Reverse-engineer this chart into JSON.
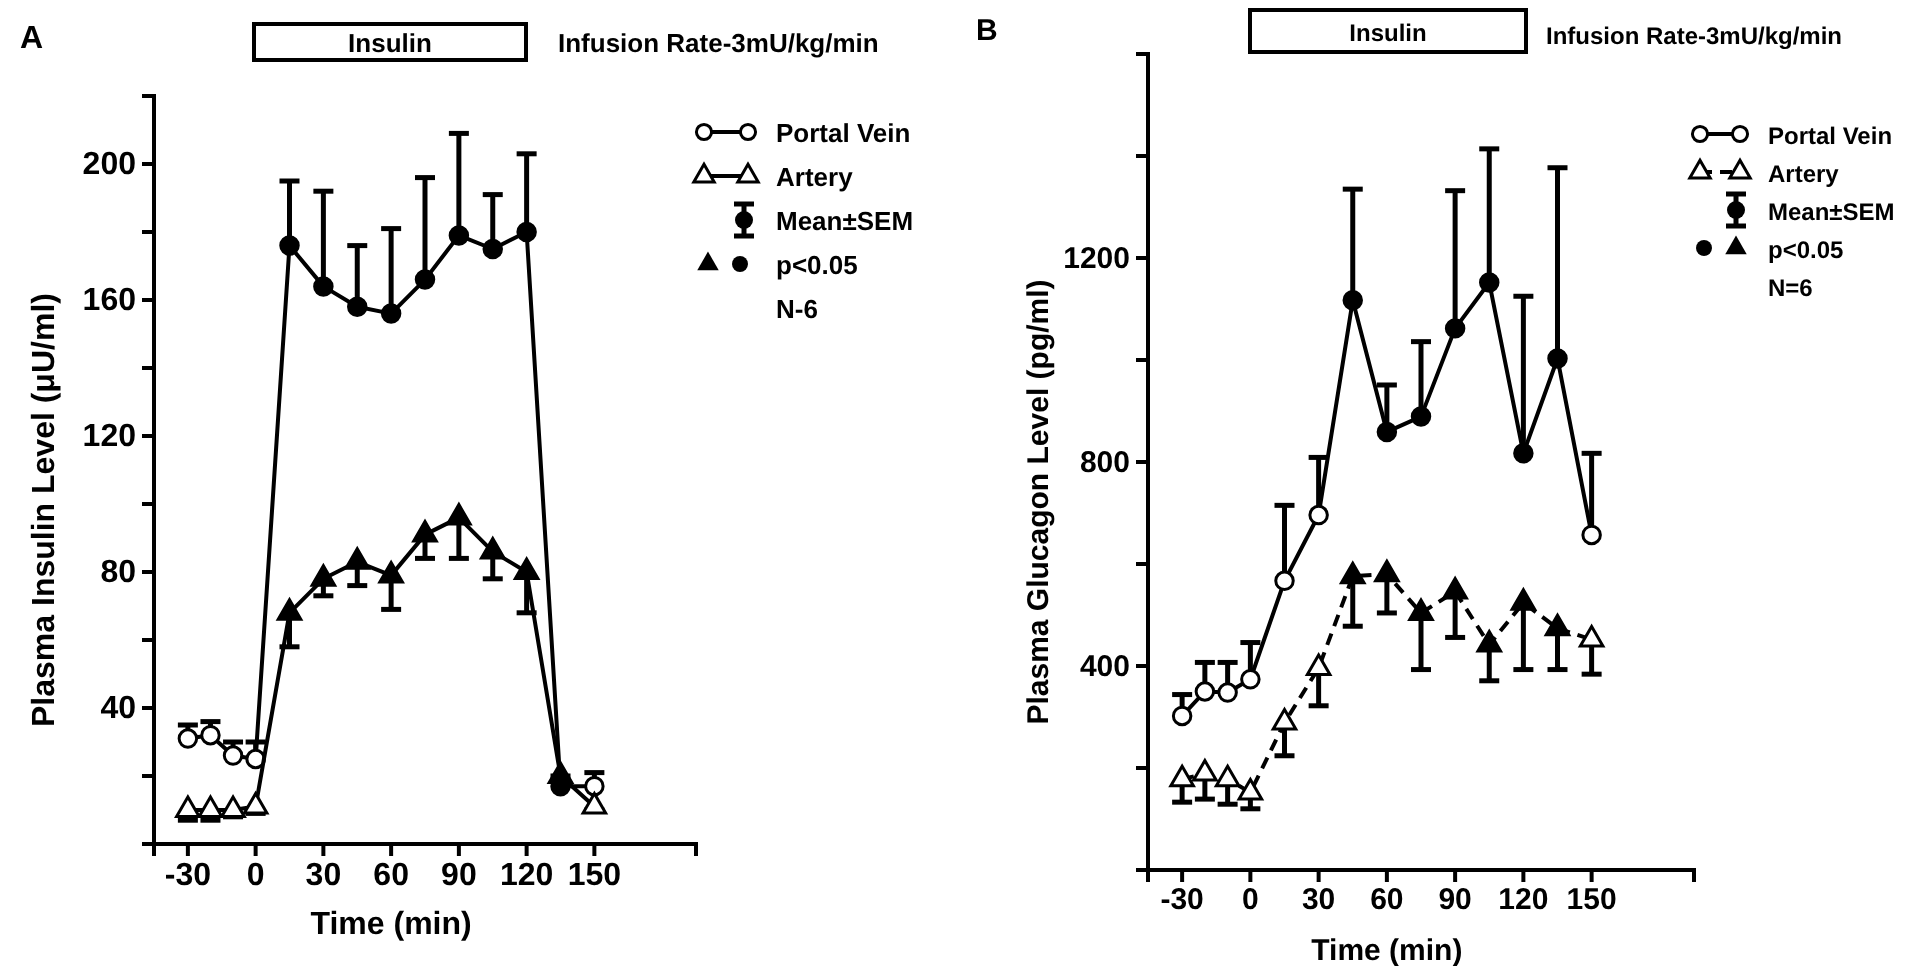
{
  "chart_data": [
    {
      "type": "line",
      "title": "A",
      "xlabel": "Time (min)",
      "ylabel": "Plasma Insulin Level (μU/ml)",
      "x": [
        -30,
        -20,
        -10,
        0,
        15,
        30,
        45,
        60,
        75,
        90,
        105,
        120,
        135,
        150
      ],
      "xlim": [
        -45,
        195
      ],
      "xticks": [
        -30,
        0,
        30,
        60,
        90,
        120,
        150
      ],
      "ylim": [
        0,
        220
      ],
      "yticks": [
        {
          "value": 20,
          "label": null
        },
        40,
        {
          "value": 60,
          "label": null
        },
        80,
        {
          "value": 100,
          "label": null
        },
        120,
        {
          "value": 140,
          "label": null
        },
        160,
        {
          "value": 180,
          "label": null
        },
        200
      ],
      "grid": false,
      "legend": "top right",
      "line_style": "solid",
      "series": [
        {
          "name": "Portal Vein",
          "color": "#000000",
          "marker": "circle",
          "values": [
            31,
            32,
            26,
            25,
            176,
            164,
            158,
            156,
            166,
            179,
            175,
            180,
            17,
            17
          ],
          "errors": [
            [
              31,
              35
            ],
            [
              32,
              36
            ],
            [
              26,
              30
            ],
            [
              25,
              30
            ],
            [
              176,
              195
            ],
            [
              164,
              192
            ],
            [
              158,
              176
            ],
            [
              156,
              181
            ],
            [
              166,
              196
            ],
            [
              179,
              209
            ],
            [
              175,
              191
            ],
            [
              180,
              203
            ],
            [
              17,
              20
            ],
            [
              17,
              21
            ]
          ],
          "colors": [
            "#ffffff",
            "#ffffff",
            "#ffffff",
            "#ffffff",
            "#000000",
            "#000000",
            "#000000",
            "#000000",
            "#000000",
            "#000000",
            "#000000",
            "#000000",
            "#000000",
            "#ffffff"
          ]
        },
        {
          "name": "Artery",
          "color": "#000000",
          "marker": "triangle",
          "values": [
            10,
            10,
            10,
            11,
            68,
            78,
            83,
            79,
            91,
            96,
            86,
            80,
            20,
            11
          ],
          "errors": [
            [
              7,
              10
            ],
            [
              7,
              10
            ],
            [
              8,
              10
            ],
            [
              9,
              11
            ],
            [
              58,
              68
            ],
            [
              73,
              78
            ],
            [
              76,
              83
            ],
            [
              69,
              79
            ],
            [
              84,
              91
            ],
            [
              84,
              96
            ],
            [
              78,
              86
            ],
            [
              68,
              80
            ],
            null,
            [
              10,
              11
            ]
          ],
          "colors": [
            "#ffffff",
            "#ffffff",
            "#ffffff",
            "#ffffff",
            "#000000",
            "#000000",
            "#000000",
            "#000000",
            "#000000",
            "#000000",
            "#000000",
            "#000000",
            "#000000",
            "#ffffff"
          ]
        }
      ],
      "annotations": [
        "Insulin",
        "Infusion Rate-3mU/kg/min",
        "Mean±SEM",
        "p<0.05",
        "N-6"
      ]
    },
    {
      "type": "line",
      "title": "B",
      "xlabel": "Time (min)",
      "ylabel": "Plasma Glucagon Level (pg/ml)",
      "x": [
        -30,
        -20,
        -10,
        0,
        15,
        30,
        45,
        60,
        75,
        90,
        105,
        120,
        135,
        150
      ],
      "xlim": [
        -45,
        195
      ],
      "xticks": [
        -30,
        0,
        30,
        60,
        90,
        120,
        150
      ],
      "ylim": [
        0,
        1600
      ],
      "yticks": [
        {
          "value": 200,
          "label": null
        },
        400,
        {
          "value": 600,
          "label": null
        },
        800,
        {
          "value": 1000,
          "label": null
        },
        1200,
        {
          "value": 1400,
          "label": null
        }
      ],
      "grid": false,
      "legend": "top right",
      "series": [
        {
          "name": "Portal Vein",
          "color": "#000000",
          "marker": "circle",
          "line_style": "solid",
          "values": [
            302,
            350,
            348,
            374,
            567,
            696,
            1117,
            859,
            889,
            1062,
            1152,
            817,
            1003,
            657
          ],
          "errors": [
            [
              302,
              344
            ],
            [
              350,
              407
            ],
            [
              348,
              407
            ],
            [
              374,
              446
            ],
            [
              567,
              715
            ],
            [
              696,
              809
            ],
            [
              1117,
              1335
            ],
            [
              859,
              951
            ],
            [
              889,
              1036
            ],
            [
              1062,
              1332
            ],
            [
              1152,
              1414
            ],
            [
              817,
              1125
            ],
            [
              1003,
              1377
            ],
            [
              657,
              817
            ]
          ],
          "colors": [
            "#ffffff",
            "#ffffff",
            "#ffffff",
            "#ffffff",
            "#ffffff",
            "#ffffff",
            "#000000",
            "#000000",
            "#000000",
            "#000000",
            "#000000",
            "#000000",
            "#000000",
            "#ffffff"
          ]
        },
        {
          "name": "Artery",
          "color": "#000000",
          "marker": "triangle",
          "line_style": "dashed",
          "values": [
            178,
            189,
            178,
            152,
            289,
            396,
            576,
            580,
            504,
            546,
            442,
            524,
            474,
            452
          ],
          "errors": [
            [
              133,
              178
            ],
            [
              139,
              189
            ],
            [
              129,
              178
            ],
            [
              120,
              152
            ],
            [
              224,
              289
            ],
            [
              322,
              396
            ],
            [
              478,
              576
            ],
            [
              504,
              580
            ],
            [
              393,
              504
            ],
            [
              456,
              546
            ],
            [
              371,
              442
            ],
            [
              393,
              524
            ],
            [
              393,
              474
            ],
            [
              384,
              452
            ]
          ],
          "colors": [
            "#ffffff",
            "#ffffff",
            "#ffffff",
            "#ffffff",
            "#ffffff",
            "#ffffff",
            "#000000",
            "#000000",
            "#000000",
            "#000000",
            "#000000",
            "#000000",
            "#000000",
            "#ffffff"
          ]
        }
      ],
      "annotations": [
        "Insulin",
        "Infusion Rate-3mU/kg/min",
        "Mean±SEM",
        "p<0.05",
        "N=6"
      ]
    }
  ]
}
